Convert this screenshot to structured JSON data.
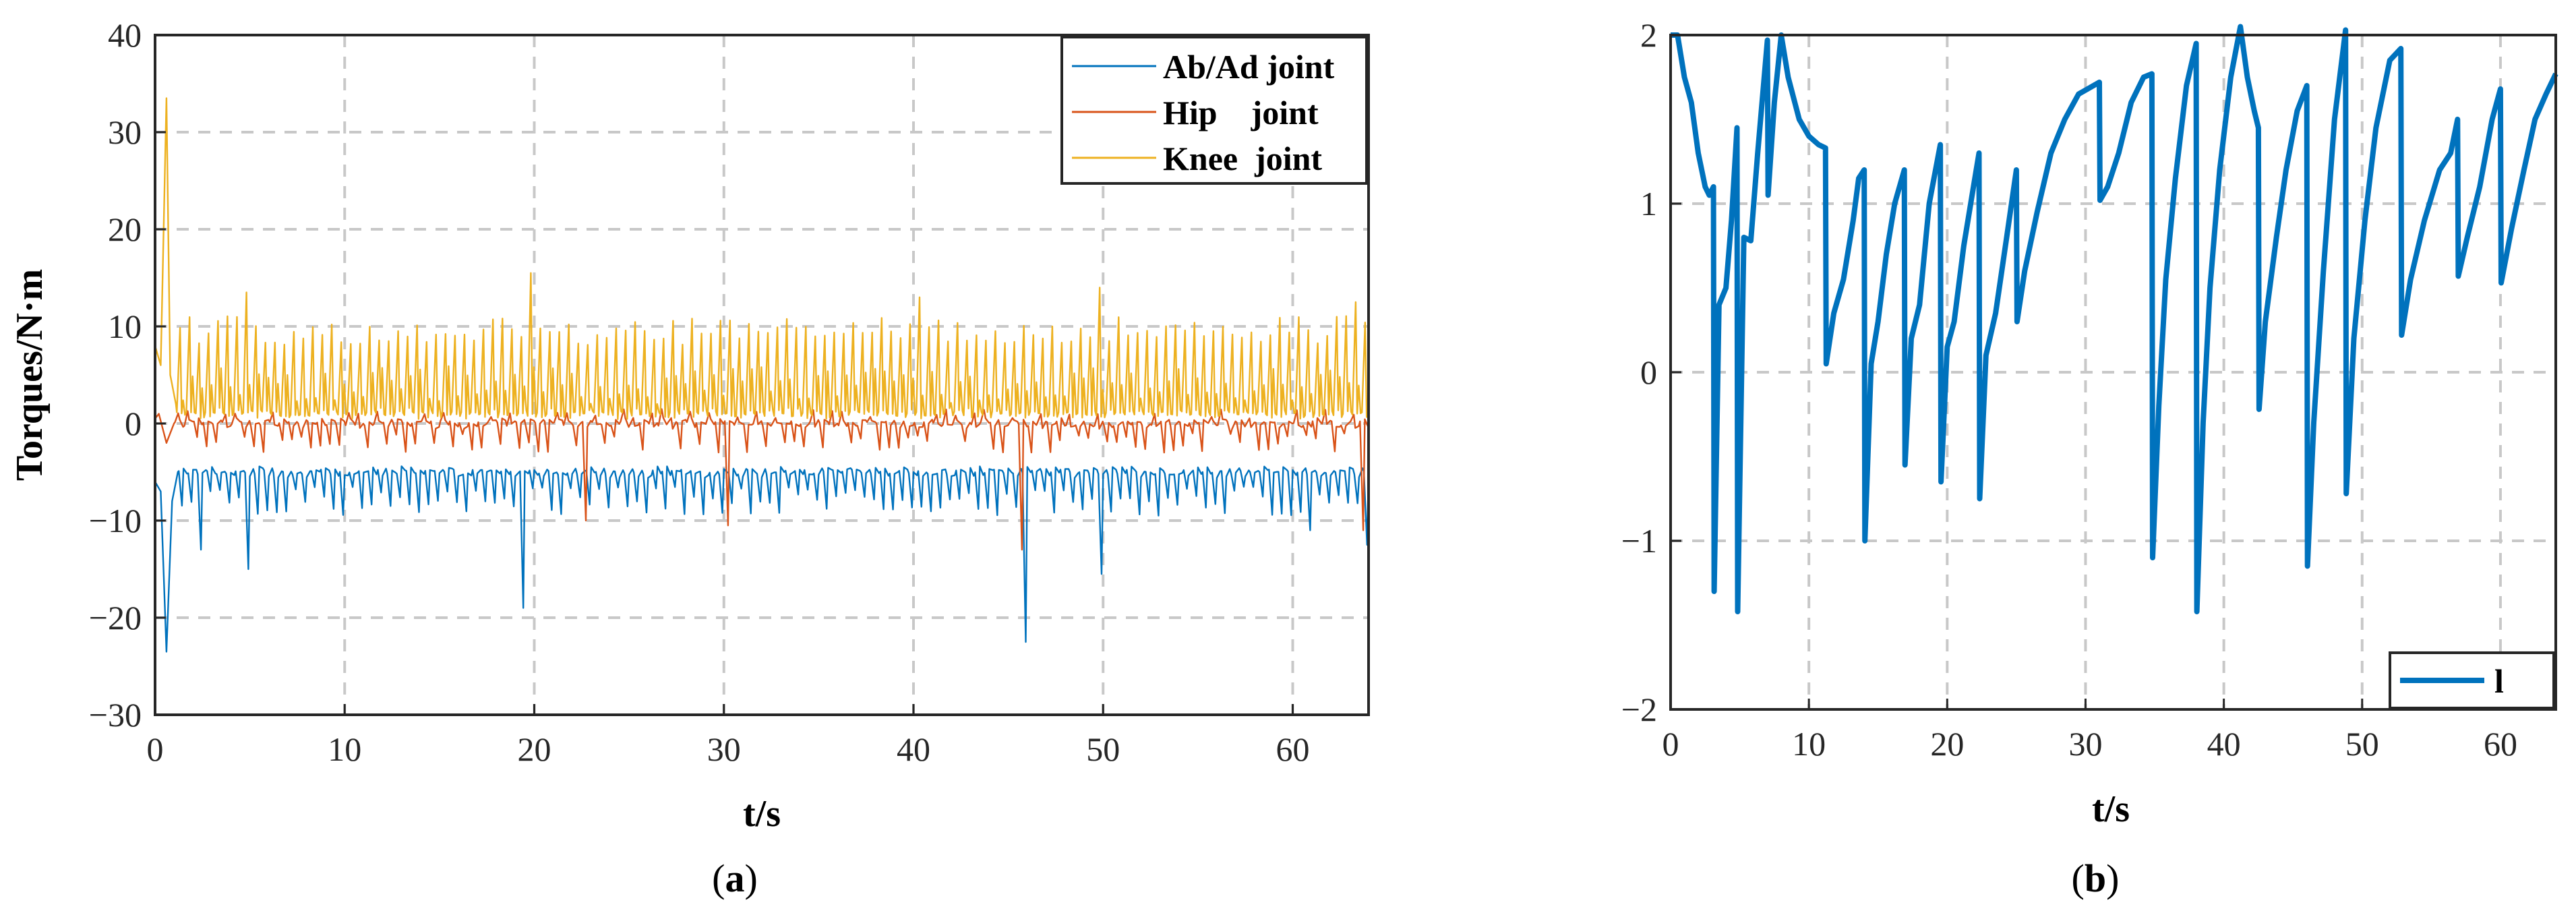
{
  "colors": {
    "abad": "#0072BD",
    "hip": "#D95319",
    "knee": "#EDB120",
    "l": "#0072BD"
  },
  "chart_data": [
    {
      "id": "a",
      "type": "line",
      "caption_letter": "a",
      "title": "",
      "xlabel": "t/s",
      "ylabel": "Torques/N·m",
      "xlim": [
        0,
        64
      ],
      "ylim": [
        -30,
        40
      ],
      "xticks": [
        0,
        10,
        20,
        30,
        40,
        50,
        60
      ],
      "yticks": [
        -30,
        -20,
        -10,
        0,
        10,
        20,
        30,
        40
      ],
      "ytick_labels": [
        "−30",
        "−20",
        "−10",
        "0",
        "10",
        "20",
        "30",
        "40"
      ],
      "grid": true,
      "legend_position": "top-right",
      "gait_period_s": 0.5,
      "series": [
        {
          "name": "Ab/Ad joint",
          "color_key": "abad",
          "baseline": -5,
          "spike_low": -9.5,
          "spike_high": -3,
          "initial": [
            [
              0,
              -6
            ],
            [
              0.3,
              -7
            ],
            [
              0.6,
              -23.5
            ],
            [
              0.9,
              -8
            ],
            [
              1.2,
              -5
            ]
          ],
          "outliers": [
            [
              2.7,
              -13
            ],
            [
              4.9,
              -15
            ],
            [
              19.5,
              -19
            ],
            [
              46,
              -22.5
            ],
            [
              50.1,
              -15.5
            ],
            [
              61,
              -11
            ],
            [
              64,
              -12.5
            ]
          ]
        },
        {
          "name": "Hip    joint",
          "color_key": "hip",
          "baseline": 0,
          "spike_low": -3,
          "spike_high": 1.5,
          "initial": [
            [
              0,
              0.5
            ],
            [
              0.2,
              1
            ],
            [
              0.6,
              -2
            ],
            [
              1,
              0
            ]
          ],
          "outliers": [
            [
              23,
              -10
            ],
            [
              30.2,
              -10.5
            ],
            [
              46,
              -13
            ],
            [
              64,
              -11
            ]
          ]
        },
        {
          "name": "Knee  joint",
          "color_key": "knee",
          "baseline": 1,
          "spike_low": 0,
          "spike_high": 9,
          "initial": [
            [
              0,
              8
            ],
            [
              0.3,
              6
            ],
            [
              0.6,
              33.5
            ],
            [
              0.8,
              5
            ],
            [
              1.1,
              2
            ]
          ],
          "outliers": [
            [
              4.9,
              13.5
            ],
            [
              19.9,
              15.5
            ],
            [
              40.6,
              13
            ],
            [
              49.7,
              14
            ],
            [
              63.5,
              12.5
            ]
          ]
        }
      ]
    },
    {
      "id": "b",
      "type": "line",
      "caption_letter": "b",
      "title": "",
      "xlabel": "t/s",
      "ylabel": "",
      "xlim": [
        0,
        64
      ],
      "ylim": [
        -2,
        2
      ],
      "xticks": [
        0,
        10,
        20,
        30,
        40,
        50,
        60
      ],
      "yticks": [
        -2,
        -1,
        0,
        1,
        2
      ],
      "ytick_labels": [
        "−2",
        "−1",
        "0",
        "1",
        "2"
      ],
      "grid": true,
      "legend_position": "bottom-right",
      "series": [
        {
          "name": "l",
          "color_key": "l",
          "points": [
            [
              0,
              2
            ],
            [
              0.5,
              2
            ],
            [
              1,
              1.75
            ],
            [
              1.5,
              1.6
            ],
            [
              2,
              1.3
            ],
            [
              2.5,
              1.1
            ],
            [
              2.8,
              1.05
            ],
            [
              3.1,
              1.1
            ],
            [
              3.15,
              -1.3
            ],
            [
              3.5,
              0.4
            ],
            [
              4,
              0.5
            ],
            [
              4.4,
              0.9
            ],
            [
              4.8,
              1.45
            ],
            [
              4.85,
              -1.42
            ],
            [
              5.3,
              0.8
            ],
            [
              5.8,
              0.78
            ],
            [
              6.3,
              1.3
            ],
            [
              7,
              1.97
            ],
            [
              7.05,
              1.05
            ],
            [
              7.5,
              1.6
            ],
            [
              8,
              2.0
            ],
            [
              8.5,
              1.75
            ],
            [
              9.3,
              1.5
            ],
            [
              10,
              1.4
            ],
            [
              10.7,
              1.35
            ],
            [
              11.2,
              1.33
            ],
            [
              11.25,
              0.05
            ],
            [
              11.8,
              0.35
            ],
            [
              12.5,
              0.55
            ],
            [
              13.2,
              0.9
            ],
            [
              13.6,
              1.15
            ],
            [
              14,
              1.2
            ],
            [
              14.05,
              -1
            ],
            [
              14.5,
              0.05
            ],
            [
              15,
              0.3
            ],
            [
              15.6,
              0.7
            ],
            [
              16.2,
              1.0
            ],
            [
              16.9,
              1.2
            ],
            [
              16.95,
              -0.55
            ],
            [
              17.4,
              0.2
            ],
            [
              18,
              0.4
            ],
            [
              18.7,
              1.0
            ],
            [
              19.5,
              1.35
            ],
            [
              19.55,
              -0.65
            ],
            [
              20,
              0.15
            ],
            [
              20.5,
              0.3
            ],
            [
              21.2,
              0.75
            ],
            [
              22,
              1.15
            ],
            [
              22.3,
              1.3
            ],
            [
              22.35,
              -0.75
            ],
            [
              22.8,
              0.1
            ],
            [
              23.5,
              0.35
            ],
            [
              24.3,
              0.8
            ],
            [
              25,
              1.2
            ],
            [
              25.05,
              0.3
            ],
            [
              25.6,
              0.6
            ],
            [
              26.5,
              0.95
            ],
            [
              27.5,
              1.3
            ],
            [
              28.5,
              1.5
            ],
            [
              29.5,
              1.65
            ],
            [
              31,
              1.72
            ],
            [
              31.05,
              1.02
            ],
            [
              31.6,
              1.1
            ],
            [
              32.4,
              1.3
            ],
            [
              33.3,
              1.6
            ],
            [
              34.2,
              1.75
            ],
            [
              34.8,
              1.77
            ],
            [
              34.85,
              -1.1
            ],
            [
              35.3,
              -0.2
            ],
            [
              35.8,
              0.55
            ],
            [
              36.5,
              1.15
            ],
            [
              37.3,
              1.7
            ],
            [
              38,
              1.95
            ],
            [
              38.05,
              -1.42
            ],
            [
              38.5,
              -0.3
            ],
            [
              39,
              0.5
            ],
            [
              39.7,
              1.2
            ],
            [
              40.5,
              1.75
            ],
            [
              41.2,
              2.05
            ],
            [
              41.7,
              1.75
            ],
            [
              42.2,
              1.55
            ],
            [
              42.5,
              1.45
            ],
            [
              42.55,
              -0.22
            ],
            [
              43,
              0.3
            ],
            [
              43.8,
              0.8
            ],
            [
              44.5,
              1.2
            ],
            [
              45.3,
              1.55
            ],
            [
              46,
              1.7
            ],
            [
              46.05,
              -1.15
            ],
            [
              46.5,
              -0.3
            ],
            [
              47.2,
              0.6
            ],
            [
              48,
              1.5
            ],
            [
              48.8,
              2.03
            ],
            [
              48.85,
              -0.72
            ],
            [
              49.4,
              0.2
            ],
            [
              50.2,
              0.9
            ],
            [
              51,
              1.45
            ],
            [
              52,
              1.85
            ],
            [
              52.8,
              1.92
            ],
            [
              52.85,
              0.22
            ],
            [
              53.5,
              0.55
            ],
            [
              54.5,
              0.9
            ],
            [
              55.6,
              1.2
            ],
            [
              56.4,
              1.3
            ],
            [
              56.9,
              1.5
            ],
            [
              56.95,
              0.57
            ],
            [
              57.6,
              0.8
            ],
            [
              58.5,
              1.1
            ],
            [
              59.4,
              1.5
            ],
            [
              60,
              1.68
            ],
            [
              60.05,
              0.53
            ],
            [
              60.8,
              0.85
            ],
            [
              61.7,
              1.2
            ],
            [
              62.5,
              1.5
            ],
            [
              63.3,
              1.65
            ],
            [
              64,
              1.77
            ]
          ]
        }
      ]
    }
  ]
}
